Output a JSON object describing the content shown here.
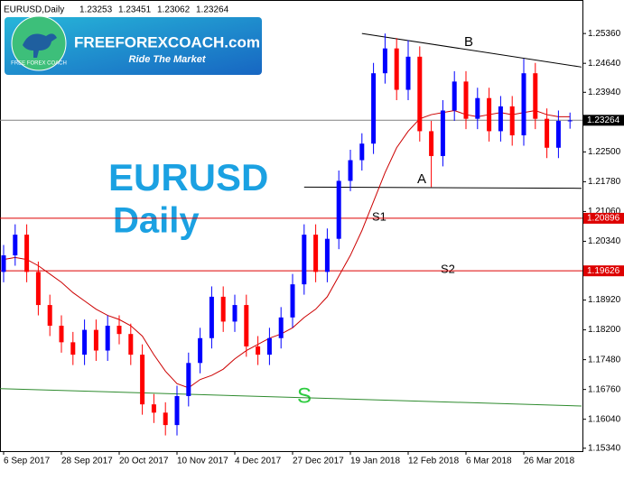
{
  "chart_data": {
    "type": "candlestick",
    "symbol": "EURUSD,Daily",
    "ohlc": [
      1.23253,
      1.23451,
      1.23062,
      1.23264
    ],
    "categories": [
      "6 Sep 2017",
      null,
      null,
      null,
      null,
      "28 Sep 2017",
      null,
      null,
      null,
      null,
      "20 Oct 2017",
      null,
      null,
      null,
      null,
      "10 Nov 2017",
      null,
      null,
      null,
      null,
      "4 Dec 2017",
      null,
      null,
      null,
      null,
      "27 Dec 2017",
      null,
      null,
      null,
      null,
      "19 Jan 2018",
      null,
      null,
      null,
      null,
      "12 Feb 2018",
      null,
      null,
      null,
      null,
      "6 Mar 2018",
      null,
      null,
      null,
      null,
      "26 Mar 2018",
      null,
      null,
      null,
      null
    ],
    "open": [
      1.196,
      1.2,
      1.205,
      1.196,
      1.188,
      1.183,
      1.179,
      1.176,
      1.182,
      1.177,
      1.183,
      1.181,
      1.176,
      1.164,
      1.162,
      1.159,
      1.166,
      1.174,
      1.18,
      1.19,
      1.184,
      1.188,
      1.178,
      1.176,
      1.18,
      1.185,
      1.193,
      1.205,
      1.196,
      1.204,
      1.218,
      1.223,
      1.227,
      1.244,
      1.25,
      1.24,
      1.248,
      1.23,
      1.224,
      1.235,
      1.242,
      1.233,
      1.238,
      1.23,
      1.236,
      1.229,
      1.244,
      1.233,
      1.226,
      1.2325
    ],
    "high": [
      1.2025,
      1.2075,
      1.2075,
      1.1985,
      1.1905,
      1.1855,
      1.1815,
      1.1845,
      1.1845,
      1.1855,
      1.1855,
      1.1835,
      1.1785,
      1.1665,
      1.1645,
      1.1685,
      1.1765,
      1.1825,
      1.1925,
      1.1925,
      1.1905,
      1.1905,
      1.1805,
      1.1825,
      1.1875,
      1.1955,
      1.2075,
      1.2075,
      1.2065,
      1.2205,
      1.2255,
      1.2295,
      1.2465,
      1.2536,
      1.2525,
      1.252,
      1.2505,
      1.2325,
      1.2375,
      1.2445,
      1.2445,
      1.2405,
      1.2405,
      1.2385,
      1.2385,
      1.2475,
      1.2465,
      1.2355,
      1.235,
      1.2345
    ],
    "low": [
      1.1935,
      1.1975,
      1.1935,
      1.1855,
      1.1805,
      1.1765,
      1.1735,
      1.1735,
      1.1745,
      1.1745,
      1.1785,
      1.1735,
      1.1615,
      1.1595,
      1.1565,
      1.1565,
      1.1635,
      1.1715,
      1.1775,
      1.1815,
      1.1815,
      1.1755,
      1.1735,
      1.1735,
      1.1775,
      1.1825,
      1.1905,
      1.1935,
      1.1935,
      1.2015,
      1.2155,
      1.2205,
      1.2245,
      1.2415,
      1.2375,
      1.2375,
      1.2275,
      1.2165,
      1.2215,
      1.2325,
      1.2305,
      1.2305,
      1.2275,
      1.2275,
      1.2265,
      1.2265,
      1.2305,
      1.2235,
      1.2235,
      1.2306
    ],
    "close": [
      1.2,
      1.205,
      1.196,
      1.188,
      1.183,
      1.179,
      1.176,
      1.182,
      1.177,
      1.183,
      1.181,
      1.176,
      1.164,
      1.162,
      1.159,
      1.166,
      1.174,
      1.18,
      1.19,
      1.184,
      1.188,
      1.178,
      1.176,
      1.18,
      1.185,
      1.193,
      1.205,
      1.196,
      1.204,
      1.218,
      1.223,
      1.227,
      1.244,
      1.25,
      1.24,
      1.248,
      1.23,
      1.224,
      1.235,
      1.242,
      1.233,
      1.238,
      1.23,
      1.236,
      1.229,
      1.244,
      1.233,
      1.226,
      1.2325,
      1.2326
    ],
    "up_color": "#0000ff",
    "down_color": "#ff0000",
    "moving_average": {
      "color": "#cc0000",
      "values": [
        1.199,
        1.1995,
        1.199,
        1.1975,
        1.1955,
        1.1935,
        1.191,
        1.189,
        1.187,
        1.1855,
        1.1845,
        1.183,
        1.1805,
        1.176,
        1.172,
        1.169,
        1.168,
        1.17,
        1.171,
        1.1725,
        1.175,
        1.177,
        1.1785,
        1.18,
        1.181,
        1.1825,
        1.185,
        1.187,
        1.19,
        1.195,
        1.2,
        1.206,
        1.213,
        1.22,
        1.226,
        1.23,
        1.233,
        1.234,
        1.2345,
        1.235,
        1.234,
        1.2335,
        1.234,
        1.2345,
        1.234,
        1.2345,
        1.235,
        1.234,
        1.2335,
        1.2335
      ]
    },
    "hlines": [
      {
        "value": 1.23264,
        "label": "1.23264",
        "color": "#808080",
        "label_bg": "#000000"
      },
      {
        "value": 1.20896,
        "label": "1.20896",
        "color": "#dd0000",
        "label_bg": "#dd0000"
      },
      {
        "value": 1.19626,
        "label": "1.19626",
        "color": "#dd0000",
        "label_bg": "#dd0000"
      }
    ],
    "trendlines": [
      {
        "x": [
          31,
          50
        ],
        "values": [
          1.2536,
          1.2455
        ],
        "color": "#000000"
      },
      {
        "x": [
          26,
          50
        ],
        "values": [
          1.2165,
          1.2162
        ],
        "color": "#000000"
      },
      {
        "x": [
          -0.3,
          50
        ],
        "values": [
          1.1678,
          1.1636
        ],
        "color": "#2e8b2e"
      }
    ],
    "annotations": {
      "b": "B",
      "a": "A",
      "s1": "S1",
      "s2": "S2",
      "s": "S",
      "big_symbol": "EURUSD",
      "big_period": "Daily"
    },
    "ylim": [
      1.1527,
      1.2617
    ],
    "yticks": [
      {
        "value": 1.2536,
        "label": "1.25360"
      },
      {
        "value": 1.2464,
        "label": "1.24640"
      },
      {
        "value": 1.2394,
        "label": "1.23940"
      },
      {
        "value": 1.225,
        "label": "1.22500"
      },
      {
        "value": 1.2178,
        "label": "1.21780"
      },
      {
        "value": 1.2106,
        "label": "1.21060"
      },
      {
        "value": 1.2034,
        "label": "1.20340"
      },
      {
        "value": 1.1892,
        "label": "1.18920"
      },
      {
        "value": 1.182,
        "label": "1.18200"
      },
      {
        "value": 1.1748,
        "label": "1.17480"
      },
      {
        "value": 1.1676,
        "label": "1.16760"
      },
      {
        "value": 1.1604,
        "label": "1.16040"
      },
      {
        "value": 1.1534,
        "label": "1.15340"
      }
    ],
    "grid": false
  },
  "logo": {
    "title": "FREEFOREXCOACH.com",
    "tagline": "Ride The Market",
    "badge": "FREE FOREX COACH"
  }
}
